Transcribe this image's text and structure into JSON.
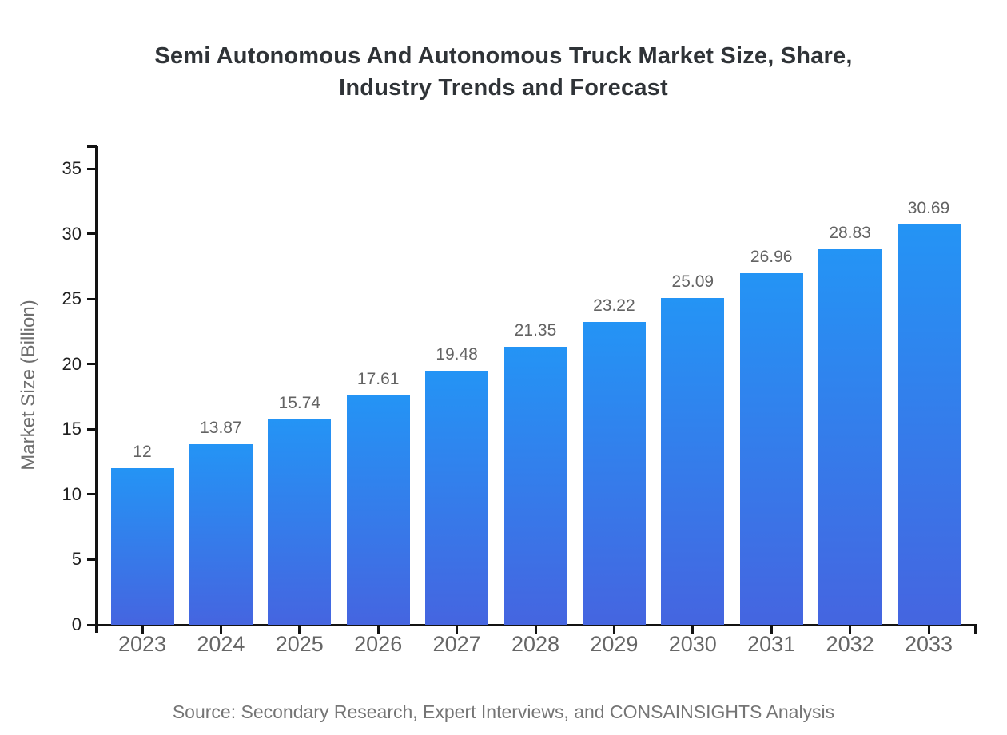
{
  "title": {
    "line1": "Semi Autonomous And Autonomous Truck Market Size, Share,",
    "line2": "Industry Trends and Forecast"
  },
  "source": {
    "text": "Source: Secondary Research, Expert Interviews, and CONSAINSIGHTS Analysis"
  },
  "colors": {
    "bar_gradient_top": "#2494F5",
    "bar_gradient_bottom": "#4565E0",
    "axis": "#131313",
    "title_text": "#2F3337",
    "x_label_gray": "#666666",
    "y_label_dark": "#1F1F1F",
    "value_label_gray": "#636363",
    "muted_gray": "#6E6E6E",
    "source_gray": "#757575"
  },
  "chart_data": {
    "type": "bar",
    "title": "Semi Autonomous And Autonomous Truck Market Size, Share, Industry Trends and Forecast",
    "categories": [
      "2023",
      "2024",
      "2025",
      "2026",
      "2027",
      "2028",
      "2029",
      "2030",
      "2031",
      "2032",
      "2033"
    ],
    "values": [
      12,
      13.87,
      15.74,
      17.61,
      19.48,
      21.35,
      23.22,
      25.09,
      26.96,
      28.83,
      30.69
    ],
    "value_labels": [
      "12",
      "13.87",
      "15.74",
      "17.61",
      "19.48",
      "21.35",
      "23.22",
      "25.09",
      "26.96",
      "28.83",
      "30.69"
    ],
    "xlabel": "",
    "ylabel": "Market Size (Billion)",
    "yticks": [
      0,
      5,
      10,
      15,
      20,
      25,
      30,
      35
    ],
    "ylim": [
      0,
      36.7
    ],
    "grid": false,
    "legend": false,
    "bar_color_top": "#2494F5",
    "bar_color_bottom": "#4565E0"
  }
}
